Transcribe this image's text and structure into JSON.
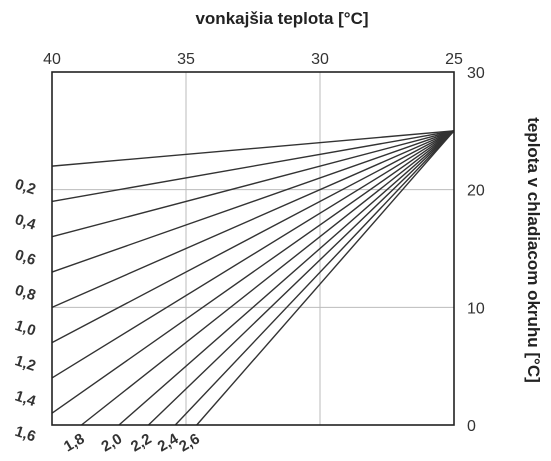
{
  "chart_data": {
    "type": "line",
    "title": "",
    "xlabel": "vonkajšia teplota [°C]",
    "ylabel": "teplota v chladiacom okruhu [°C]",
    "x_axis": {
      "position": "top",
      "reversed": true,
      "xlim": [
        40,
        25
      ],
      "ticks": [
        "40",
        "35",
        "30",
        "25"
      ]
    },
    "y_axis": {
      "position": "right",
      "ylim": [
        0,
        30
      ],
      "ticks": [
        "0",
        "10",
        "20",
        "30"
      ]
    },
    "grid": true,
    "series": [
      {
        "name": "0,2",
        "x": [
          40,
          25
        ],
        "y": [
          22.0,
          25
        ]
      },
      {
        "name": "0,4",
        "x": [
          40,
          25
        ],
        "y": [
          19.0,
          25
        ]
      },
      {
        "name": "0,6",
        "x": [
          40,
          25
        ],
        "y": [
          16.0,
          25
        ]
      },
      {
        "name": "0,8",
        "x": [
          40,
          25
        ],
        "y": [
          13.0,
          25
        ]
      },
      {
        "name": "1,0",
        "x": [
          40,
          25
        ],
        "y": [
          10.0,
          25
        ]
      },
      {
        "name": "1,2",
        "x": [
          40,
          25
        ],
        "y": [
          7.0,
          25
        ]
      },
      {
        "name": "1,4",
        "x": [
          40,
          25
        ],
        "y": [
          4.0,
          25
        ]
      },
      {
        "name": "1,6",
        "x": [
          40,
          25
        ],
        "y": [
          1.0,
          25
        ]
      },
      {
        "name": "1,8",
        "x": [
          38.9,
          25
        ],
        "y": [
          0,
          25
        ]
      },
      {
        "name": "2,0",
        "x": [
          37.5,
          25
        ],
        "y": [
          0,
          25
        ]
      },
      {
        "name": "2,2",
        "x": [
          36.4,
          25
        ],
        "y": [
          0,
          25
        ]
      },
      {
        "name": "2,4",
        "x": [
          35.4,
          25
        ],
        "y": [
          0,
          25
        ]
      },
      {
        "name": "2,6",
        "x": [
          34.6,
          25
        ],
        "y": [
          0,
          25
        ]
      }
    ]
  },
  "colors": {
    "line": "#333333",
    "grid": "#bbbbbb",
    "frame": "#222222",
    "text": "#333333"
  }
}
